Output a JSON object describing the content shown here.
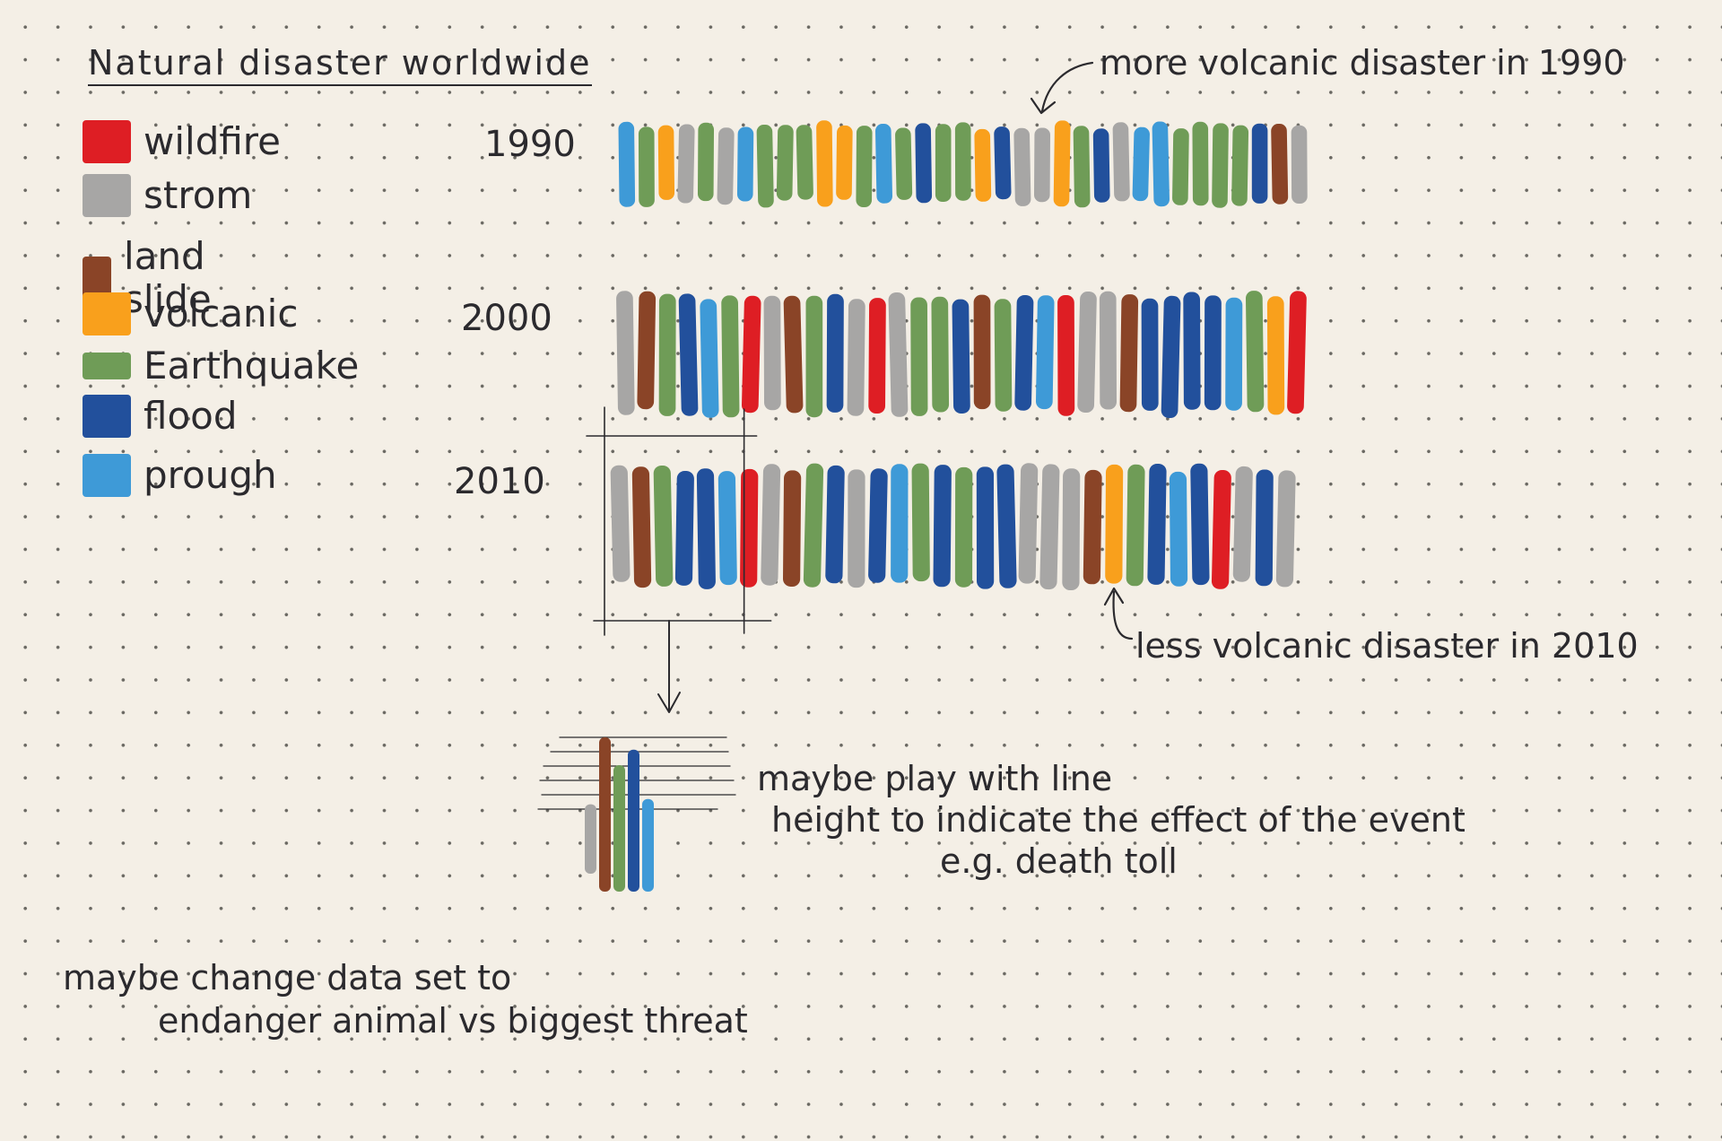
{
  "colors": {
    "wildfire": "#de1e24",
    "storm": "#a7a6a5",
    "landslide": "#8a4427",
    "volcanic": "#f9a01c",
    "earthquake": "#6f9c57",
    "flood": "#22509c",
    "drought": "#3e9ad7",
    "ink": "#2b2a2e"
  },
  "chart_data": {
    "type": "bar",
    "title": "Natural disaster worldwide",
    "legend": [
      {
        "key": "wildfire",
        "label": "wildfire"
      },
      {
        "key": "storm",
        "label": "strom"
      },
      {
        "key": "landslide",
        "label": "land slide"
      },
      {
        "key": "volcanic",
        "label": "volcanic"
      },
      {
        "key": "earthquake",
        "label": "Earthquake"
      },
      {
        "key": "flood",
        "label": "flood"
      },
      {
        "key": "drought",
        "label": "prough"
      }
    ],
    "legend_position": "top-left",
    "rows": [
      {
        "year": "1990",
        "events": [
          "drought",
          "earthquake",
          "volcanic",
          "storm",
          "earthquake",
          "storm",
          "drought",
          "earthquake",
          "earthquake",
          "earthquake",
          "volcanic",
          "volcanic",
          "earthquake",
          "drought",
          "earthquake",
          "flood",
          "earthquake",
          "earthquake",
          "volcanic",
          "flood",
          "storm",
          "storm",
          "volcanic",
          "earthquake",
          "flood",
          "storm",
          "drought",
          "drought",
          "earthquake",
          "earthquake",
          "earthquake",
          "earthquake",
          "flood",
          "landslide",
          "storm"
        ]
      },
      {
        "year": "2000",
        "events": [
          "storm",
          "landslide",
          "earthquake",
          "flood",
          "drought",
          "earthquake",
          "wildfire",
          "storm",
          "landslide",
          "earthquake",
          "flood",
          "storm",
          "wildfire",
          "storm",
          "earthquake",
          "earthquake",
          "flood",
          "landslide",
          "earthquake",
          "flood",
          "drought",
          "wildfire",
          "storm",
          "storm",
          "landslide",
          "flood",
          "flood",
          "flood",
          "flood",
          "drought",
          "earthquake",
          "volcanic",
          "wildfire"
        ]
      },
      {
        "year": "2010",
        "events": [
          "storm",
          "landslide",
          "earthquake",
          "flood",
          "flood",
          "drought",
          "wildfire",
          "storm",
          "landslide",
          "earthquake",
          "flood",
          "storm",
          "flood",
          "drought",
          "earthquake",
          "flood",
          "earthquake",
          "flood",
          "flood",
          "storm",
          "storm",
          "storm",
          "landslide",
          "volcanic",
          "earthquake",
          "flood",
          "drought",
          "flood",
          "wildfire",
          "storm",
          "flood",
          "storm"
        ]
      }
    ],
    "highlight_box_row": "2010",
    "highlight_box_count": 6,
    "detail_example": {
      "strokes": [
        {
          "key": "storm",
          "height": 0.45
        },
        {
          "key": "landslide",
          "height": 1.0
        },
        {
          "key": "earthquake",
          "height": 0.82
        },
        {
          "key": "flood",
          "height": 0.92
        },
        {
          "key": "drought",
          "height": 0.6
        }
      ]
    }
  },
  "annotations": {
    "more_volcanic": "more volcanic disaster in 1990",
    "less_volcanic": "less volcanic disaster in 2010",
    "line_height_note": [
      "maybe play with line",
      "height to indicate the effect of the event",
      "e.g. death toll"
    ],
    "dataset_note": [
      "maybe change data set to",
      "endanger animal vs biggest threat"
    ]
  }
}
